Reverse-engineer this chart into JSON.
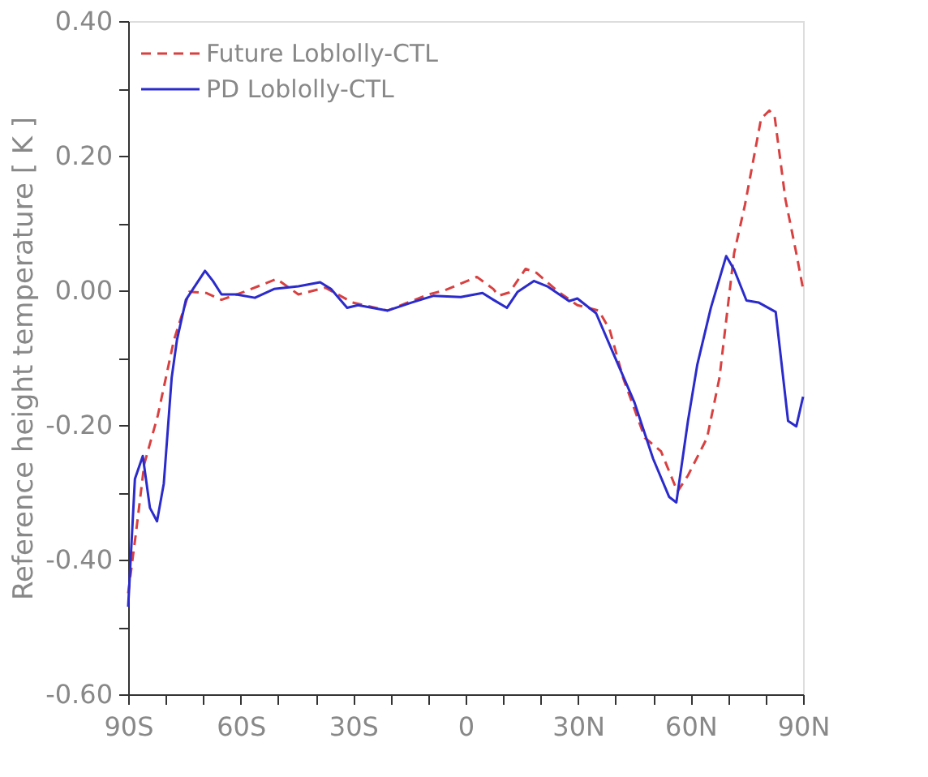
{
  "chart_data": {
    "type": "line",
    "ylabel": "Reference height temperature [ K ]",
    "xlim": [
      -90,
      90
    ],
    "xticks": [
      {
        "value": -90,
        "label": "90S"
      },
      {
        "value": -80,
        "label": null
      },
      {
        "value": -70,
        "label": null
      },
      {
        "value": -60,
        "label": "60S"
      },
      {
        "value": -50,
        "label": null
      },
      {
        "value": -40,
        "label": null
      },
      {
        "value": -30,
        "label": "30S"
      },
      {
        "value": -20,
        "label": null
      },
      {
        "value": -10,
        "label": null
      },
      {
        "value": 0,
        "label": "0"
      },
      {
        "value": 10,
        "label": null
      },
      {
        "value": 20,
        "label": null
      },
      {
        "value": 30,
        "label": "30N"
      },
      {
        "value": 40,
        "label": null
      },
      {
        "value": 50,
        "label": null
      },
      {
        "value": 60,
        "label": "60N"
      },
      {
        "value": 70,
        "label": null
      },
      {
        "value": 80,
        "label": null
      },
      {
        "value": 90,
        "label": "90N"
      }
    ],
    "ylim": [
      -0.6,
      0.4
    ],
    "yticks": [
      {
        "value": -0.6,
        "label": "-0.60"
      },
      {
        "value": -0.5,
        "label": null
      },
      {
        "value": -0.4,
        "label": "-0.40"
      },
      {
        "value": -0.3,
        "label": null
      },
      {
        "value": -0.2,
        "label": "-0.20"
      },
      {
        "value": -0.1,
        "label": null
      },
      {
        "value": 0,
        "label": "0.00"
      },
      {
        "value": 0.1,
        "label": null
      },
      {
        "value": 0.2,
        "label": "0.20"
      },
      {
        "value": 0.3,
        "label": null
      },
      {
        "value": 0.4,
        "label": "0.40"
      }
    ],
    "grid": false,
    "legend": "top left",
    "marker": "none",
    "series": [
      {
        "name": "Future Loblolly-CTL",
        "color": "#d94040",
        "line_style": "dashed",
        "x": [
          -90,
          -87.8,
          -85.7,
          -82.1,
          -77.8,
          -73.7,
          -69.1,
          -65.1,
          -59,
          -50.4,
          -44.6,
          -37.4,
          -30.2,
          -20.8,
          -9.9,
          -5.6,
          3,
          7.4,
          8.8,
          11.7,
          16,
          18.9,
          24.7,
          29.8,
          35.5,
          38.4,
          42,
          47.8,
          52.1,
          56.5,
          59.3,
          64.4,
          67.7,
          71.6,
          74.5,
          78.8,
          81,
          82.4,
          85.3,
          88.2,
          90
        ],
        "values": [
          -0.45,
          -0.355,
          -0.258,
          -0.186,
          -0.074,
          -0.002,
          -0.004,
          -0.014,
          -0.002,
          0.017,
          -0.006,
          0.004,
          -0.018,
          -0.03,
          -0.006,
          0,
          0.02,
          0.002,
          -0.008,
          -0.003,
          0.032,
          0.026,
          -0.002,
          -0.022,
          -0.03,
          -0.058,
          -0.13,
          -0.219,
          -0.239,
          -0.299,
          -0.275,
          -0.219,
          -0.13,
          0.055,
          0.127,
          0.255,
          0.267,
          0.259,
          0.135,
          0.055,
          0.002
        ]
      },
      {
        "name": "PD Loblolly-CTL",
        "color": "#2b2bcc",
        "line_style": "solid",
        "x": [
          -90,
          -88.2,
          -86.1,
          -84.2,
          -82.3,
          -80.5,
          -78.4,
          -77,
          -74.6,
          -69.5,
          -67.4,
          -65.1,
          -61.2,
          -56.2,
          -51.1,
          -44.6,
          -38.8,
          -35.9,
          -31.6,
          -28.7,
          -20.8,
          -14.3,
          -8.5,
          -1.3,
          4.5,
          7.4,
          11,
          13.9,
          18.2,
          21.8,
          27.6,
          29.8,
          34.8,
          39.1,
          45,
          50,
          54.3,
          56.2,
          59.3,
          61.8,
          65.4,
          69.5,
          71.6,
          74.9,
          78.1,
          82.7,
          86,
          88.2,
          90
        ],
        "values": [
          -0.47,
          -0.28,
          -0.246,
          -0.323,
          -0.343,
          -0.287,
          -0.13,
          -0.074,
          -0.014,
          0.029,
          0.014,
          -0.006,
          -0.006,
          -0.011,
          0.002,
          0.006,
          0.012,
          0.002,
          -0.026,
          -0.022,
          -0.03,
          -0.018,
          -0.008,
          -0.01,
          -0.004,
          -0.014,
          -0.026,
          -0.002,
          0.014,
          0.006,
          -0.016,
          -0.012,
          -0.034,
          -0.09,
          -0.166,
          -0.25,
          -0.307,
          -0.315,
          -0.194,
          -0.11,
          -0.026,
          0.051,
          0.031,
          -0.015,
          -0.018,
          -0.032,
          -0.194,
          -0.202,
          -0.158
        ]
      }
    ]
  }
}
